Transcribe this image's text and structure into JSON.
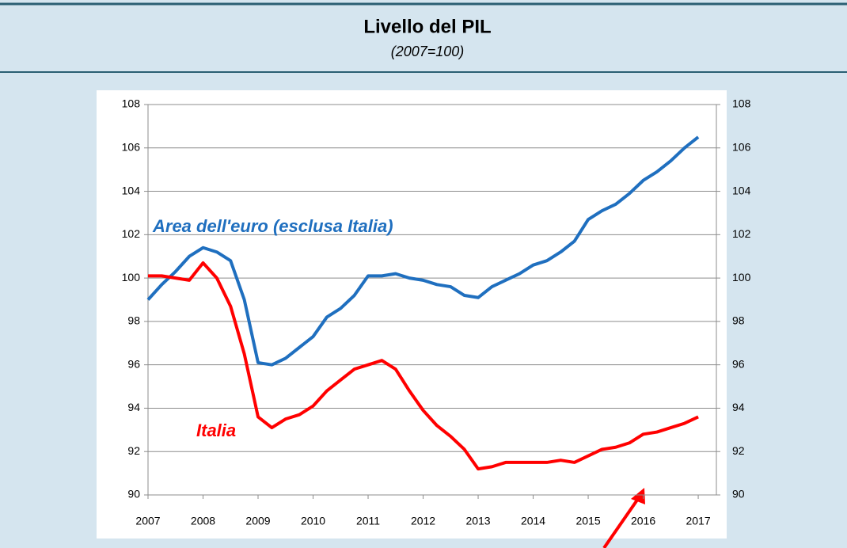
{
  "chart_data": {
    "type": "line",
    "title": "Livello del PIL",
    "subtitle": "(2007=100)",
    "x": [
      2007,
      2007.25,
      2007.5,
      2007.75,
      2008,
      2008.25,
      2008.5,
      2008.75,
      2009,
      2009.25,
      2009.5,
      2009.75,
      2010,
      2010.25,
      2010.5,
      2010.75,
      2011,
      2011.25,
      2011.5,
      2011.75,
      2012,
      2012.25,
      2012.5,
      2012.75,
      2013,
      2013.25,
      2013.5,
      2013.75,
      2014,
      2014.25,
      2014.5,
      2014.75,
      2015,
      2015.25,
      2015.5,
      2015.75,
      2016,
      2016.25,
      2016.5,
      2016.75,
      2017
    ],
    "series": [
      {
        "name": "Area dell'euro (esclusa Italia)",
        "color": "#1f6fbf",
        "values": [
          99.0,
          99.7,
          100.3,
          101.0,
          101.4,
          101.2,
          100.8,
          99.0,
          96.1,
          96.0,
          96.3,
          96.8,
          97.3,
          98.2,
          98.6,
          99.2,
          100.1,
          100.1,
          100.2,
          100.0,
          99.9,
          99.7,
          99.6,
          99.2,
          99.1,
          99.6,
          99.9,
          100.2,
          100.6,
          100.8,
          101.2,
          101.7,
          102.7,
          103.1,
          103.4,
          103.9,
          104.5,
          104.9,
          105.4,
          106.0,
          106.5
        ]
      },
      {
        "name": "Italia",
        "color": "#ff0000",
        "values": [
          100.1,
          100.1,
          100.0,
          99.9,
          100.7,
          100.0,
          98.7,
          96.5,
          93.6,
          93.1,
          93.5,
          93.7,
          94.1,
          94.8,
          95.3,
          95.8,
          96.0,
          96.2,
          95.8,
          94.8,
          93.9,
          93.2,
          92.7,
          92.1,
          91.2,
          91.3,
          91.5,
          91.5,
          91.5,
          91.5,
          91.6,
          91.5,
          91.8,
          92.1,
          92.2,
          92.4,
          92.8,
          92.9,
          93.1,
          93.3,
          93.6
        ]
      }
    ],
    "xlim": [
      2007,
      2017.33
    ],
    "xticks": [
      2007,
      2008,
      2009,
      2010,
      2011,
      2012,
      2013,
      2014,
      2015,
      2016,
      2017
    ],
    "ylim": [
      90,
      108
    ],
    "yticks": [
      90,
      92,
      94,
      96,
      98,
      100,
      102,
      104,
      106,
      108
    ],
    "y2lim": [
      90,
      108
    ],
    "y2ticks": [
      90,
      92,
      94,
      96,
      98,
      100,
      102,
      104,
      106,
      108
    ],
    "grid": true
  }
}
